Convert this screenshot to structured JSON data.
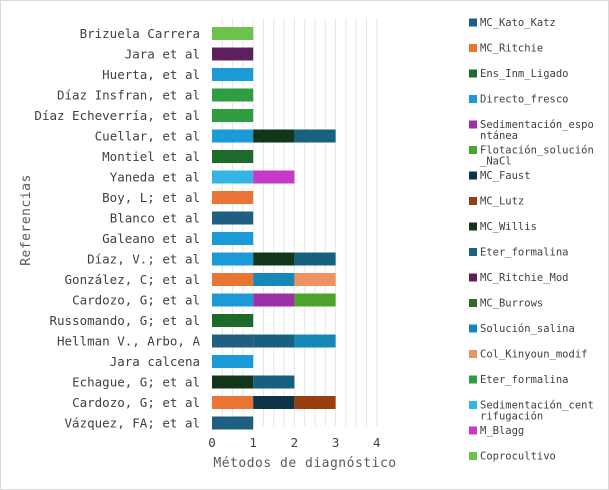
{
  "chart_data": {
    "type": "bar",
    "orientation": "horizontal",
    "stacked": true,
    "xlabel": "Métodos de diagnóstico",
    "ylabel": "Referencias",
    "xlim": [
      0,
      4
    ],
    "xticks": [
      "0",
      "1",
      "2",
      "3",
      "4"
    ],
    "grid": "vertical",
    "legend_position": "right",
    "categories": [
      "Brizuela Carrera",
      "Jara et al",
      "Huerta, et al",
      "Díaz Insfran, et al",
      "Díaz Echeverría, et al",
      "Cuellar, et al",
      "Montiel et al",
      "Yaneda et al",
      "Boy, L; et al",
      "Blanco et al",
      "Galeano et al",
      "Díaz, V.; et al",
      "González, C; et al",
      "Cardozo, G; et al",
      "Russomando, G; et al",
      "Hellman V., Arbo, A",
      "Jara calcena",
      "Echague, G; et al",
      "Cardozo, G; et al",
      "Vázquez, FA; et al"
    ],
    "series": [
      {
        "name": "MC_Kato_Katz",
        "color": "#1f5f82",
        "values": [
          0,
          0,
          0,
          0,
          0,
          0,
          0,
          0,
          0,
          1,
          0,
          0,
          0,
          0,
          0,
          1,
          0,
          0,
          0,
          1
        ]
      },
      {
        "name": "MC_Ritchie",
        "color": "#ea7434",
        "values": [
          0,
          0,
          0,
          0,
          0,
          0,
          0,
          0,
          1,
          0,
          0,
          0,
          1,
          0,
          0,
          0,
          0,
          0,
          1,
          0
        ]
      },
      {
        "name": "Ens_Inm_Ligado",
        "color": "#1d6b2a",
        "values": [
          0,
          0,
          0,
          0,
          0,
          0,
          1,
          0,
          0,
          0,
          0,
          0,
          0,
          0,
          1,
          0,
          0,
          0,
          0,
          0
        ]
      },
      {
        "name": "Directo_fresco",
        "color": "#1a9ad6",
        "values": [
          0,
          0,
          1,
          0,
          0,
          1,
          0,
          0,
          0,
          0,
          1,
          1,
          0,
          1,
          0,
          0,
          1,
          0,
          0,
          0
        ]
      },
      {
        "name": "Sedimentación_espontánea",
        "color": "#9b30a8",
        "values": [
          0,
          0,
          0,
          0,
          0,
          0,
          0,
          0,
          0,
          0,
          0,
          0,
          0,
          1,
          0,
          0,
          0,
          0,
          0,
          0
        ]
      },
      {
        "name": "Flotación_solución_NaCl",
        "color": "#4ea32d",
        "values": [
          0,
          0,
          0,
          0,
          0,
          0,
          0,
          0,
          0,
          0,
          0,
          0,
          0,
          1,
          0,
          0,
          0,
          0,
          0,
          0
        ]
      },
      {
        "name": "MC_Faust",
        "color": "#0d3546",
        "values": [
          0,
          0,
          0,
          0,
          0,
          0,
          0,
          0,
          0,
          0,
          0,
          0,
          0,
          0,
          0,
          0,
          0,
          0,
          1,
          0
        ]
      },
      {
        "name": "MC_Lutz",
        "color": "#983e0f",
        "values": [
          0,
          0,
          0,
          0,
          0,
          0,
          0,
          0,
          0,
          0,
          0,
          0,
          0,
          0,
          0,
          0,
          0,
          0,
          1,
          0
        ]
      },
      {
        "name": "MC_Willis",
        "color": "#12361a",
        "values": [
          0,
          0,
          0,
          0,
          0,
          1,
          0,
          0,
          0,
          0,
          0,
          1,
          0,
          0,
          0,
          0,
          0,
          1,
          0,
          0
        ]
      },
      {
        "name": "Eter_formalina",
        "color": "#17607f",
        "values": [
          0,
          0,
          0,
          0,
          0,
          1,
          0,
          0,
          0,
          0,
          0,
          1,
          0,
          0,
          0,
          1,
          0,
          1,
          0,
          0
        ]
      },
      {
        "name": "MC_Ritchie_Mod",
        "color": "#5e1f5e",
        "values": [
          0,
          1,
          0,
          0,
          0,
          0,
          0,
          0,
          0,
          0,
          0,
          0,
          0,
          0,
          0,
          0,
          0,
          0,
          0,
          0
        ]
      },
      {
        "name": "MC_Burrows",
        "color": "#2d6e2d",
        "values": [
          0,
          0,
          0,
          0,
          0,
          0,
          0,
          0,
          0,
          0,
          0,
          0,
          0,
          0,
          0,
          0,
          0,
          0,
          0,
          0
        ]
      },
      {
        "name": "Solución_salina",
        "color": "#1588b8",
        "values": [
          0,
          0,
          0,
          0,
          0,
          0,
          0,
          0,
          0,
          0,
          0,
          0,
          1,
          0,
          0,
          1,
          0,
          0,
          0,
          0
        ]
      },
      {
        "name": "Col_Kinyoun_modif",
        "color": "#f09262",
        "values": [
          0,
          0,
          0,
          0,
          0,
          0,
          0,
          0,
          0,
          0,
          0,
          0,
          1,
          0,
          0,
          0,
          0,
          0,
          0,
          0
        ]
      },
      {
        "name": "Eter_formalina",
        "color": "#2e9e40",
        "values": [
          0,
          0,
          0,
          1,
          1,
          0,
          0,
          0,
          0,
          0,
          0,
          0,
          0,
          0,
          0,
          0,
          0,
          0,
          0,
          0
        ]
      },
      {
        "name": "Sedimentación_centrifugación",
        "color": "#33b6e5",
        "values": [
          0,
          0,
          0,
          0,
          0,
          0,
          0,
          1,
          0,
          0,
          0,
          0,
          0,
          0,
          0,
          0,
          0,
          0,
          0,
          0
        ]
      },
      {
        "name": "M_Blagg",
        "color": "#c73ac7",
        "values": [
          0,
          0,
          0,
          0,
          0,
          0,
          0,
          1,
          0,
          0,
          0,
          0,
          0,
          0,
          0,
          0,
          0,
          0,
          0,
          0
        ]
      },
      {
        "name": "Coprocultivo",
        "color": "#6cc24a",
        "values": [
          1,
          0,
          0,
          0,
          0,
          0,
          0,
          0,
          0,
          0,
          0,
          0,
          0,
          0,
          0,
          0,
          0,
          0,
          0,
          0
        ]
      }
    ],
    "legend_display": [
      {
        "lines": [
          "MC_Kato_Katz"
        ]
      },
      {
        "lines": [
          "MC_Ritchie"
        ]
      },
      {
        "lines": [
          "Ens_Inm_Ligado"
        ]
      },
      {
        "lines": [
          "Directo_fresco"
        ]
      },
      {
        "lines": [
          "Sedimentación_espo",
          "ntánea"
        ]
      },
      {
        "lines": [
          "Flotación_solución",
          "_NaCl"
        ]
      },
      {
        "lines": [
          "MC_Faust"
        ]
      },
      {
        "lines": [
          "MC_Lutz"
        ]
      },
      {
        "lines": [
          "MC_Willis"
        ]
      },
      {
        "lines": [
          "Eter_formalina"
        ]
      },
      {
        "lines": [
          "MC_Ritchie_Mod"
        ]
      },
      {
        "lines": [
          "MC_Burrows"
        ]
      },
      {
        "lines": [
          "Solución_salina"
        ]
      },
      {
        "lines": [
          "Col_Kinyoun_modif"
        ]
      },
      {
        "lines": [
          "Eter_formalina"
        ]
      },
      {
        "lines": [
          "Sedimentación_cent",
          "rifugación"
        ]
      },
      {
        "lines": [
          "M_Blagg"
        ]
      },
      {
        "lines": [
          "Coprocultivo"
        ]
      }
    ],
    "gridline_color": "#e6e6e6"
  }
}
